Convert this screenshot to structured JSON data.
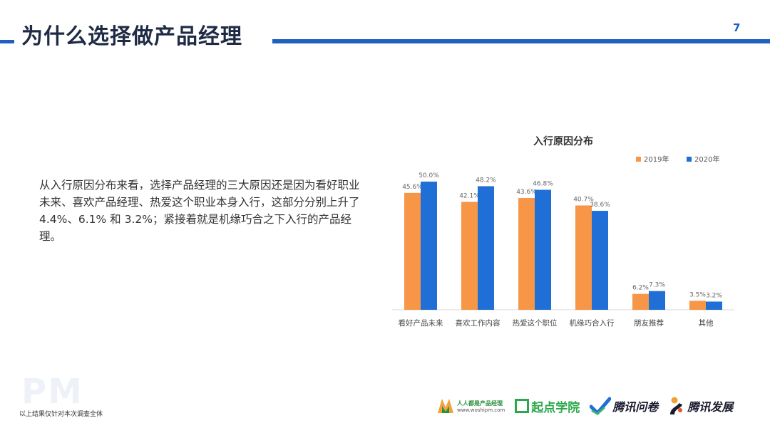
{
  "header": {
    "title": "为什么选择做产品经理",
    "page_number": "7"
  },
  "body_text": "从入行原因分布来看，选择产品经理的三大原因还是因为看好职业未来、喜欢产品经理、热爱这个职业本身入行，这部分分别上升了 4.4%、6.1% 和 3.2%；紧接着就是机缘巧合之下入行的产品经理。",
  "watermark": "PM",
  "footer": {
    "note": "以上结果仅针对本次调查全体",
    "logos": [
      {
        "name": "人人都是产品经理",
        "sub": "www.woshipm.com"
      },
      {
        "name": "起点学院"
      },
      {
        "name": "腾讯问卷"
      },
      {
        "name": "腾讯发展"
      }
    ]
  },
  "colors": {
    "accent": "#1f5fbf",
    "series_2019": "#f79646",
    "series_2020": "#1f6fd6"
  },
  "chart_data": {
    "type": "bar",
    "title": "入行原因分布",
    "categories": [
      "看好产品未来",
      "喜欢工作内容",
      "热爱这个职位",
      "机缘巧合入行",
      "朋友推荐",
      "其他"
    ],
    "series": [
      {
        "name": "2019年",
        "values": [
          45.6,
          42.1,
          43.6,
          40.7,
          6.2,
          3.5
        ],
        "labels": [
          "45.6%",
          "42.1%",
          "43.6%",
          "40.7%",
          "6.2%",
          "3.5%"
        ]
      },
      {
        "name": "2020年",
        "values": [
          50.0,
          48.2,
          46.8,
          38.6,
          7.3,
          3.2
        ],
        "labels": [
          "50.0%",
          "48.2%",
          "46.8%",
          "38.6%",
          "7.3%",
          "3.2%"
        ]
      }
    ],
    "xlabel": "",
    "ylabel": "",
    "ylim": [
      0,
      50
    ],
    "legend": "top-right",
    "grid": false
  }
}
